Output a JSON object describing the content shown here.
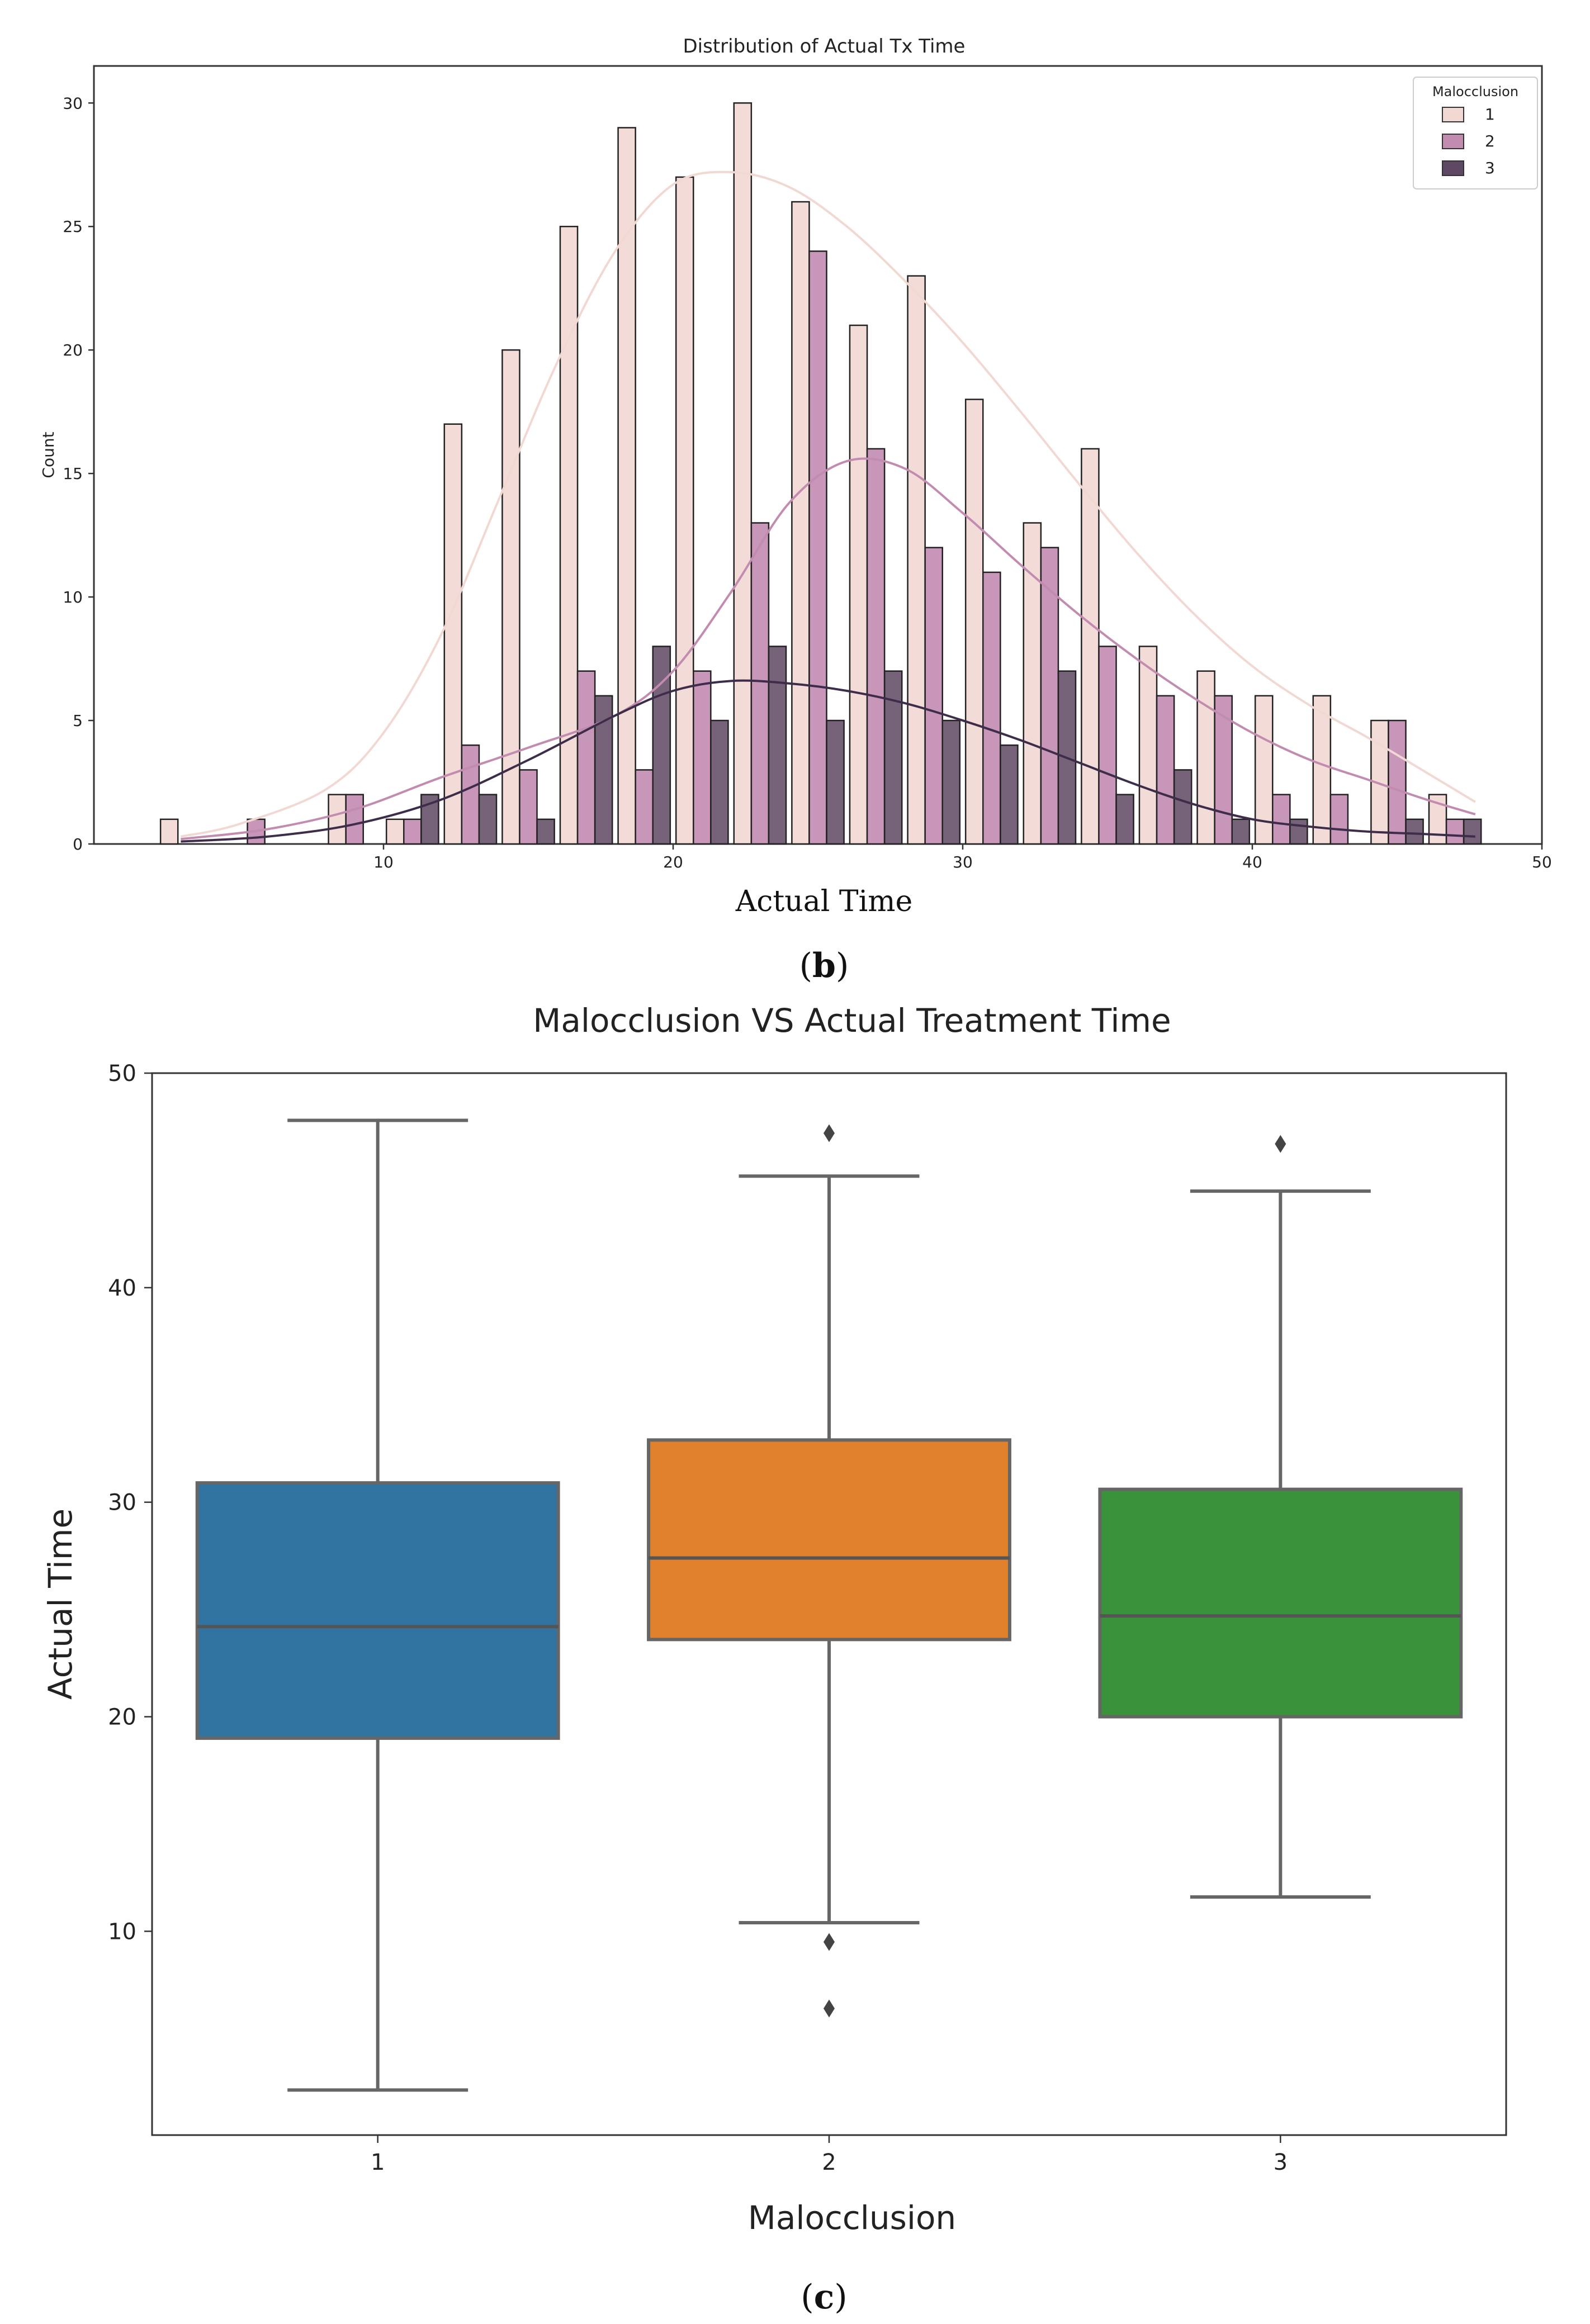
{
  "chart_data": [
    {
      "type": "histogram",
      "title": "Distribution of Actual Tx Time",
      "xlabel": "Actual Time",
      "ylabel": "Count",
      "xlim": [
        0,
        50
      ],
      "ylim": [
        0,
        31.5
      ],
      "x_ticks": [
        "10",
        "20",
        "30",
        "40",
        "50"
      ],
      "y_ticks": [
        "0",
        "5",
        "10",
        "15",
        "20",
        "25",
        "30"
      ],
      "legend_title": "Malocclusion",
      "legend_position": "top-right",
      "bin_centers": [
        3.2,
        5.6,
        9.0,
        11.0,
        13.0,
        15.0,
        17.0,
        19.0,
        21.0,
        23.0,
        25.0,
        27.0,
        29.0,
        31.0,
        33.0,
        35.0,
        37.0,
        39.0,
        41.0,
        43.0,
        45.0,
        47.0
      ],
      "series": [
        {
          "name": "1",
          "color": "#f2d8d3",
          "values": [
            1,
            0,
            2,
            1,
            17,
            20,
            25,
            29,
            27,
            30,
            26,
            21,
            23,
            18,
            13,
            16,
            8,
            7,
            6,
            6,
            5,
            2
          ],
          "kde_x": [
            3,
            5,
            8,
            10,
            12,
            14,
            16,
            18,
            20,
            22,
            24,
            26,
            28,
            30,
            32,
            34,
            36,
            38,
            40,
            42,
            44,
            46,
            47.7
          ],
          "kde_y": [
            0.3,
            0.8,
            2.2,
            4.5,
            8.5,
            14.0,
            19.5,
            24.0,
            26.7,
            27.2,
            26.6,
            25.0,
            22.8,
            20.3,
            17.5,
            14.6,
            11.8,
            9.3,
            7.2,
            5.6,
            4.3,
            2.9,
            1.7
          ]
        },
        {
          "name": "2",
          "color": "#c28bb0",
          "values": [
            0,
            1,
            2,
            1,
            4,
            3,
            7,
            3,
            7,
            13,
            24,
            16,
            12,
            11,
            12,
            8,
            6,
            6,
            2,
            2,
            5,
            1
          ],
          "kde_x": [
            3,
            6,
            9,
            12,
            15,
            18,
            20,
            22,
            24,
            26,
            28,
            30,
            32,
            34,
            36,
            38,
            40,
            42,
            44,
            46,
            47.7
          ],
          "kde_y": [
            0.2,
            0.6,
            1.4,
            2.7,
            3.9,
            5.2,
            7.0,
            10.2,
            13.8,
            15.5,
            15.2,
            13.4,
            11.3,
            9.3,
            7.5,
            5.9,
            4.5,
            3.4,
            2.6,
            1.8,
            1.2
          ]
        },
        {
          "name": "3",
          "color": "#5e4863",
          "values": [
            0,
            0,
            0,
            2,
            2,
            1,
            6,
            8,
            5,
            8,
            5,
            7,
            5,
            4,
            7,
            2,
            3,
            1,
            1,
            0,
            1,
            1
          ],
          "kde_x": [
            3,
            6,
            9,
            12,
            15,
            18,
            20,
            22,
            24,
            26,
            28,
            30,
            32,
            34,
            36,
            38,
            40,
            42,
            44,
            46,
            47.7
          ],
          "kde_y": [
            0.1,
            0.3,
            0.8,
            1.8,
            3.4,
            5.2,
            6.2,
            6.6,
            6.5,
            6.2,
            5.7,
            5.0,
            4.2,
            3.3,
            2.4,
            1.6,
            1.0,
            0.7,
            0.5,
            0.4,
            0.3
          ]
        }
      ]
    },
    {
      "type": "box",
      "title": "Malocclusion VS Actual Treatment Time",
      "xlabel": "Malocclusion",
      "ylabel": "Actual Time",
      "ylim": [
        0.5,
        50
      ],
      "y_ticks": [
        "10",
        "20",
        "30",
        "40",
        "50"
      ],
      "categories": [
        "1",
        "2",
        "3"
      ],
      "boxes": [
        {
          "category": "1",
          "color": "#3274a1",
          "whisker_low": 2.6,
          "q1": 19.0,
          "median": 24.2,
          "q3": 30.9,
          "whisker_high": 47.8,
          "outliers": []
        },
        {
          "category": "2",
          "color": "#e1812c",
          "whisker_low": 10.4,
          "q1": 23.6,
          "median": 27.4,
          "q3": 32.9,
          "whisker_high": 45.2,
          "outliers": [
            47.2,
            9.5,
            6.4
          ]
        },
        {
          "category": "3",
          "color": "#3a923a",
          "whisker_low": 11.6,
          "q1": 20.0,
          "median": 24.7,
          "q3": 30.6,
          "whisker_high": 44.5,
          "outliers": [
            46.7
          ]
        }
      ]
    }
  ],
  "captions": {
    "b": "b",
    "c": "c"
  }
}
